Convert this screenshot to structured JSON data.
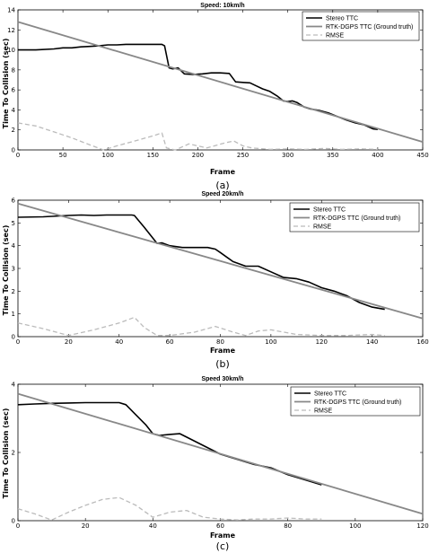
{
  "chart_data": [
    {
      "type": "line",
      "title": "Speed: 10km/h",
      "xlabel": "Frame",
      "ylabel": "Time To Collision (sec)",
      "sublabel": "(a)",
      "xlim": [
        0,
        450
      ],
      "ylim": [
        0,
        14
      ],
      "xticks": [
        0,
        50,
        100,
        150,
        200,
        250,
        300,
        350,
        400,
        450
      ],
      "yticks": [
        0,
        2,
        4,
        6,
        8,
        10,
        12,
        14
      ],
      "legend_position": "top-right",
      "series": [
        {
          "name": "Stereo TTC",
          "color": "#000000",
          "style": "solid",
          "width": 1.6,
          "x": [
            0,
            20,
            40,
            50,
            60,
            70,
            80,
            90,
            100,
            110,
            120,
            140,
            160,
            163,
            168,
            172,
            178,
            185,
            195,
            205,
            215,
            225,
            235,
            242,
            250,
            258,
            265,
            272,
            280,
            288,
            295,
            300,
            305,
            310,
            318,
            325,
            335,
            345,
            355,
            365,
            375,
            385,
            395,
            400
          ],
          "y": [
            10.0,
            10.0,
            10.1,
            10.2,
            10.2,
            10.3,
            10.35,
            10.4,
            10.5,
            10.5,
            10.55,
            10.55,
            10.55,
            10.4,
            8.2,
            8.1,
            8.2,
            7.6,
            7.55,
            7.6,
            7.7,
            7.7,
            7.65,
            6.8,
            6.75,
            6.7,
            6.4,
            6.1,
            5.85,
            5.4,
            4.9,
            4.85,
            4.9,
            4.75,
            4.3,
            4.1,
            3.95,
            3.7,
            3.35,
            3.0,
            2.7,
            2.5,
            2.1,
            2.05
          ]
        },
        {
          "name": "RTK-DGPS TTC (Ground truth)",
          "color": "#888888",
          "style": "solid",
          "width": 1.8,
          "x": [
            0,
            450
          ],
          "y": [
            12.8,
            0.8
          ]
        },
        {
          "name": "RMSE",
          "color": "#bbbbbb",
          "style": "dashed",
          "width": 1.3,
          "x": [
            0,
            20,
            40,
            60,
            80,
            95,
            110,
            130,
            150,
            160,
            165,
            175,
            190,
            210,
            230,
            240,
            250,
            260,
            280,
            300,
            320,
            340,
            360,
            380,
            400
          ],
          "y": [
            2.7,
            2.4,
            1.8,
            1.2,
            0.5,
            0.0,
            0.4,
            0.9,
            1.4,
            1.7,
            0.2,
            0.0,
            0.6,
            0.2,
            0.7,
            0.9,
            0.4,
            0.2,
            0.05,
            0.1,
            0.05,
            0.15,
            0.05,
            0.1,
            0.05
          ]
        }
      ]
    },
    {
      "type": "line",
      "title": "Speed 20km/h",
      "xlabel": "Frame",
      "ylabel": "Time To Collision (sec)",
      "sublabel": "(b)",
      "xlim": [
        0,
        160
      ],
      "ylim": [
        0,
        6
      ],
      "xticks": [
        0,
        20,
        40,
        60,
        80,
        100,
        120,
        140,
        160
      ],
      "yticks": [
        0,
        1,
        2,
        3,
        4,
        5,
        6
      ],
      "legend_position": "top-right",
      "series": [
        {
          "name": "Stereo TTC",
          "color": "#000000",
          "style": "solid",
          "width": 1.6,
          "x": [
            0,
            10,
            20,
            25,
            30,
            35,
            40,
            45,
            46,
            50,
            55,
            57,
            60,
            65,
            70,
            75,
            78,
            80,
            85,
            90,
            95,
            100,
            105,
            110,
            115,
            120,
            125,
            130,
            135,
            140,
            145
          ],
          "y": [
            5.25,
            5.27,
            5.33,
            5.35,
            5.33,
            5.35,
            5.35,
            5.35,
            5.33,
            4.8,
            4.1,
            4.12,
            4.0,
            3.92,
            3.92,
            3.92,
            3.85,
            3.7,
            3.3,
            3.1,
            3.1,
            2.85,
            2.6,
            2.55,
            2.4,
            2.15,
            2.0,
            1.8,
            1.5,
            1.3,
            1.2
          ]
        },
        {
          "name": "RTK-DGPS TTC (Ground truth)",
          "color": "#888888",
          "style": "solid",
          "width": 1.8,
          "x": [
            0,
            160
          ],
          "y": [
            5.85,
            0.8
          ]
        },
        {
          "name": "RMSE",
          "color": "#bbbbbb",
          "style": "dashed",
          "width": 1.3,
          "x": [
            0,
            10,
            20,
            30,
            40,
            46,
            50,
            55,
            60,
            70,
            78,
            85,
            90,
            95,
            100,
            110,
            120,
            130,
            140,
            145
          ],
          "y": [
            0.6,
            0.35,
            0.05,
            0.3,
            0.6,
            0.85,
            0.4,
            0.05,
            0.05,
            0.2,
            0.45,
            0.2,
            0.05,
            0.25,
            0.3,
            0.1,
            0.05,
            0.05,
            0.1,
            0.05
          ]
        }
      ]
    },
    {
      "type": "line",
      "title": "Speed 30km/h",
      "xlabel": "Frame",
      "ylabel": "Time To Collision (sec)",
      "sublabel": "(c)",
      "xlim": [
        0,
        120
      ],
      "ylim": [
        0,
        4
      ],
      "xticks": [
        0,
        20,
        40,
        60,
        80,
        100,
        120
      ],
      "yticks": [
        0,
        2,
        4
      ],
      "legend_position": "top-right",
      "series": [
        {
          "name": "Stereo TTC",
          "color": "#000000",
          "style": "solid",
          "width": 1.6,
          "x": [
            0,
            5,
            10,
            15,
            20,
            25,
            30,
            32,
            35,
            38,
            40,
            42,
            45,
            48,
            50,
            55,
            60,
            65,
            70,
            75,
            80,
            85,
            90
          ],
          "y": [
            3.4,
            3.42,
            3.44,
            3.45,
            3.46,
            3.46,
            3.46,
            3.4,
            3.1,
            2.8,
            2.55,
            2.5,
            2.53,
            2.55,
            2.45,
            2.2,
            1.95,
            1.8,
            1.65,
            1.55,
            1.35,
            1.2,
            1.05
          ]
        },
        {
          "name": "RTK-DGPS TTC (Ground truth)",
          "color": "#888888",
          "style": "solid",
          "width": 1.8,
          "x": [
            0,
            120
          ],
          "y": [
            3.72,
            0.2
          ]
        },
        {
          "name": "RMSE",
          "color": "#bbbbbb",
          "style": "dashed",
          "width": 1.3,
          "x": [
            0,
            5,
            10,
            15,
            20,
            25,
            30,
            35,
            40,
            45,
            50,
            55,
            60,
            65,
            70,
            75,
            80,
            85,
            90
          ],
          "y": [
            0.35,
            0.2,
            0.02,
            0.25,
            0.45,
            0.62,
            0.68,
            0.45,
            0.1,
            0.25,
            0.3,
            0.1,
            0.05,
            0.02,
            0.05,
            0.05,
            0.08,
            0.05,
            0.05
          ]
        }
      ]
    }
  ]
}
